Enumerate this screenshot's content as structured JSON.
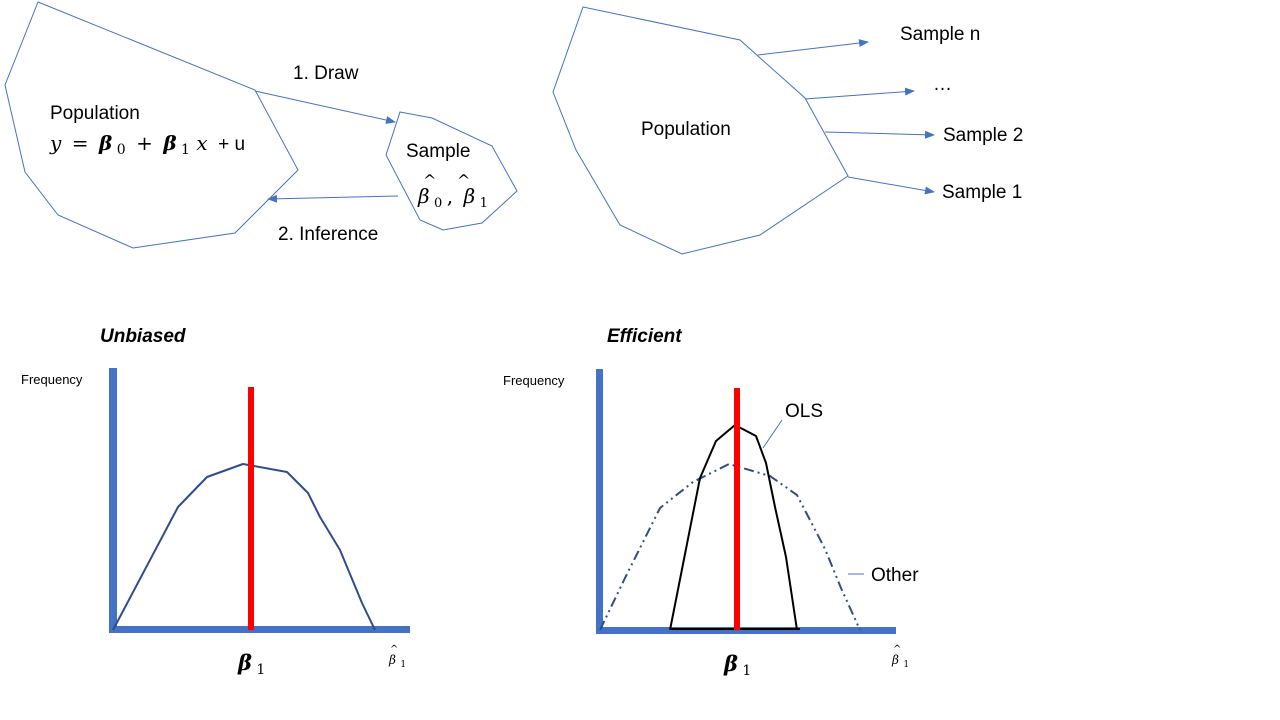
{
  "diagram1": {
    "population_label": "Population",
    "equation": {
      "y": "y",
      "eq": "=",
      "beta0": "β",
      "sub0": "0",
      "plus1": "+",
      "beta1": "β",
      "sub1": "1",
      "x": "x",
      "plus2": "+ u"
    },
    "draw_label": "1. Draw",
    "inference_label": "2. Inference",
    "sample_label": "Sample",
    "sample_estimates": {
      "b0": "β",
      "b0_sub": "0",
      "comma": ",",
      "b1": "β",
      "b1_sub": "1",
      "hat": "^"
    }
  },
  "diagram2": {
    "population_label": "Population",
    "samples": [
      "Sample n",
      "…",
      "Sample 2",
      "Sample 1"
    ]
  },
  "chart_left": {
    "title": "Unbiased",
    "ylabel": "Frequency",
    "true_param": {
      "sym": "β",
      "sub": "1"
    },
    "axis_end_label": {
      "sym": "β",
      "sub": "1",
      "hat": "^"
    }
  },
  "chart_right": {
    "title": "Efficient",
    "ylabel": "Frequency",
    "true_param": {
      "sym": "β",
      "sub": "1"
    },
    "axis_end_label": {
      "sym": "β",
      "sub": "1",
      "hat": "^"
    },
    "ols_label": "OLS",
    "other_label": "Other"
  },
  "colors": {
    "shape_stroke": "#4472C4",
    "axis": "#4472C4",
    "true_line": "#FF0000",
    "curve_left": "#2F4D8A",
    "ols_curve": "#000000",
    "other_curve": "#2F4D8A"
  }
}
